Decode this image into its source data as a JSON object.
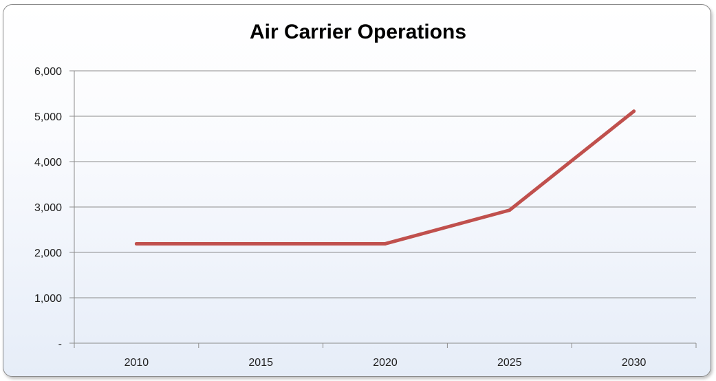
{
  "chart_data": {
    "type": "line",
    "title": "Air Carrier Operations",
    "xlabel": "",
    "ylabel": "",
    "categories": [
      "2010",
      "2015",
      "2020",
      "2025",
      "2030"
    ],
    "series": [
      {
        "values": [
          2190,
          2190,
          2190,
          2930,
          5110
        ],
        "color": "#c0504d"
      }
    ],
    "ylim": [
      0,
      6000
    ],
    "yticks": [
      0,
      1000,
      2000,
      3000,
      4000,
      5000,
      6000
    ],
    "ytick_labels": [
      "-",
      "1,000",
      "2,000",
      "3,000",
      "4,000",
      "5,000",
      "6,000"
    ],
    "grid": true,
    "legend": "none"
  }
}
